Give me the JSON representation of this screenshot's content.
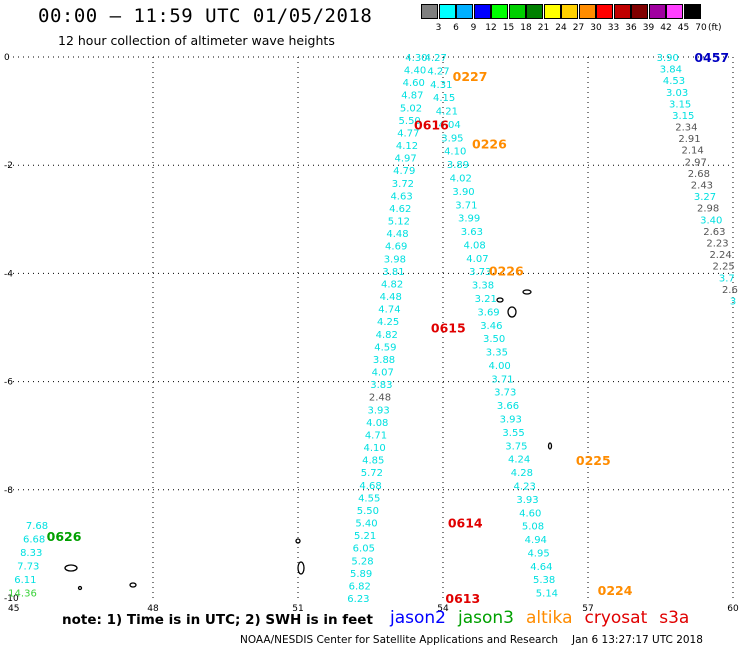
{
  "header": {
    "title": "00:00 – 11:59 UTC 01/05/2018",
    "subtitle": "12 hour collection of altimeter wave heights"
  },
  "scale": {
    "unit": "(ft)",
    "bins": [
      {
        "label": "3",
        "color": "#7f7f7f"
      },
      {
        "label": "6",
        "color": "#00ffff"
      },
      {
        "label": "9",
        "color": "#00b0ff"
      },
      {
        "label": "12",
        "color": "#0000ff"
      },
      {
        "label": "15",
        "color": "#00ff00"
      },
      {
        "label": "18",
        "color": "#00d000"
      },
      {
        "label": "21",
        "color": "#008000"
      },
      {
        "label": "24",
        "color": "#ffff00"
      },
      {
        "label": "27",
        "color": "#ffd000"
      },
      {
        "label": "30",
        "color": "#ff8c00"
      },
      {
        "label": "33",
        "color": "#ff0000"
      },
      {
        "label": "36",
        "color": "#c00000"
      },
      {
        "label": "39",
        "color": "#800000"
      },
      {
        "label": "42",
        "color": "#a000a0"
      },
      {
        "label": "45",
        "color": "#ff40ff"
      },
      {
        "label": "70",
        "color": "#000000"
      }
    ]
  },
  "map": {
    "lon_ticks": [
      "45",
      "48",
      "51",
      "54",
      "57",
      "60"
    ],
    "lat_ticks": [
      "0",
      "-2",
      "-4",
      "-6",
      "-8",
      "-10"
    ],
    "passes": [
      {
        "name": "jason2-west",
        "color": "#00e0e0",
        "start_lon": 53.45,
        "end_lon": 52.25,
        "start_lat": 0.0,
        "end_lat": -10.0,
        "values": [
          "4.30",
          "4.40",
          "4.60",
          "4.87",
          "5.02",
          "5.50",
          "4.77",
          "4.12",
          "4.97",
          "4.79",
          "3.72",
          "4.63",
          "4.62",
          "5.12",
          "4.48",
          "4.69",
          "3.98",
          "3.81",
          "4.82",
          "4.48",
          "4.74",
          "4.25",
          "4.82",
          "4.59",
          "3.88",
          "4.07",
          "3.83",
          "2.48",
          "3.93",
          "4.08",
          "4.71",
          "4.10",
          "4.85",
          "5.72",
          "4.68",
          "4.55",
          "5.50",
          "5.40",
          "5.21",
          "6.05",
          "5.28",
          "5.89",
          "6.82",
          "6.23"
        ]
      },
      {
        "name": "jason2-east",
        "color": "#00e0e0",
        "start_lon": 53.85,
        "end_lon": 56.15,
        "start_lat": 0.0,
        "end_lat": -9.9,
        "values": [
          "4.27",
          "4.27",
          "4.31",
          "4.15",
          "4.21",
          "4.04",
          "3.95",
          "4.10",
          "3.89",
          "4.02",
          "3.90",
          "3.71",
          "3.99",
          "3.63",
          "4.08",
          "4.07",
          "3.73",
          "3.38",
          "3.21",
          "3.69",
          "3.46",
          "3.50",
          "3.35",
          "4.00",
          "3.71",
          "3.73",
          "3.66",
          "3.93",
          "3.55",
          "3.75",
          "4.24",
          "4.28",
          "4.23",
          "3.93",
          "4.60",
          "5.08",
          "4.94",
          "4.95",
          "4.64",
          "5.38",
          "5.14"
        ]
      },
      {
        "name": "far-east",
        "color": "#00e0e0",
        "start_lon": 58.65,
        "end_lon": 60.0,
        "start_lat": 0.0,
        "end_lat": -4.5,
        "values": [
          "3.90",
          "3.84",
          "4.53",
          "3.03",
          "3.15",
          "3.15",
          "2.34",
          "2.91",
          "2.14",
          "2.97",
          "2.68",
          "2.43",
          "3.27",
          "2.98",
          "3.40",
          "2.63",
          "2.23",
          "2.24",
          "2.25",
          "3.7",
          "2.6",
          "3"
        ]
      },
      {
        "name": "southwest",
        "color": "#00e0e0",
        "start_lon": 45.6,
        "end_lon": 45.3,
        "start_lat": -8.65,
        "end_lat": -9.9,
        "values": [
          "7.68",
          "6.68",
          "8.33",
          "7.73",
          "6.11",
          "14.36"
        ]
      }
    ],
    "times": [
      {
        "label": "0457",
        "color": "#0000c0",
        "lon": 59.2,
        "lat": 0.0
      },
      {
        "label": "0227",
        "color": "#ff8c00",
        "lon": 54.2,
        "lat": -0.35
      },
      {
        "label": "0616",
        "color": "#e00000",
        "lon": 53.4,
        "lat": -1.25
      },
      {
        "label": "0226",
        "color": "#ff8c00",
        "lon": 54.6,
        "lat": -1.6
      },
      {
        "label": "0226",
        "color": "#ff8c00",
        "lon": 54.95,
        "lat": -3.95
      },
      {
        "label": "0615",
        "color": "#e00000",
        "lon": 53.75,
        "lat": -5.0
      },
      {
        "label": "0225",
        "color": "#ff8c00",
        "lon": 56.75,
        "lat": -7.45
      },
      {
        "label": "0614",
        "color": "#e00000",
        "lon": 54.1,
        "lat": -8.6
      },
      {
        "label": "0626",
        "color": "#00a000",
        "lon": 45.8,
        "lat": -8.85
      },
      {
        "label": "0224",
        "color": "#ff8c00",
        "lon": 57.2,
        "lat": -9.85
      },
      {
        "label": "0613",
        "color": "#e00000",
        "lon": 54.05,
        "lat": -10.0
      }
    ]
  },
  "footer": {
    "note": "note: 1) Time is in UTC; 2) SWH is in feet",
    "legend": [
      {
        "label": "jason2",
        "color": "#0000ff"
      },
      {
        "label": "jason3",
        "color": "#00a000"
      },
      {
        "label": "altika",
        "color": "#ff8c00"
      },
      {
        "label": "cryosat",
        "color": "#e00000"
      },
      {
        "label": "s3a",
        "color": "#e00000"
      }
    ],
    "credit": "NOAA/NESDIS Center for Satellite Applications and Research",
    "timestamp": "Jan  6 13:27:17 UTC 2018"
  }
}
